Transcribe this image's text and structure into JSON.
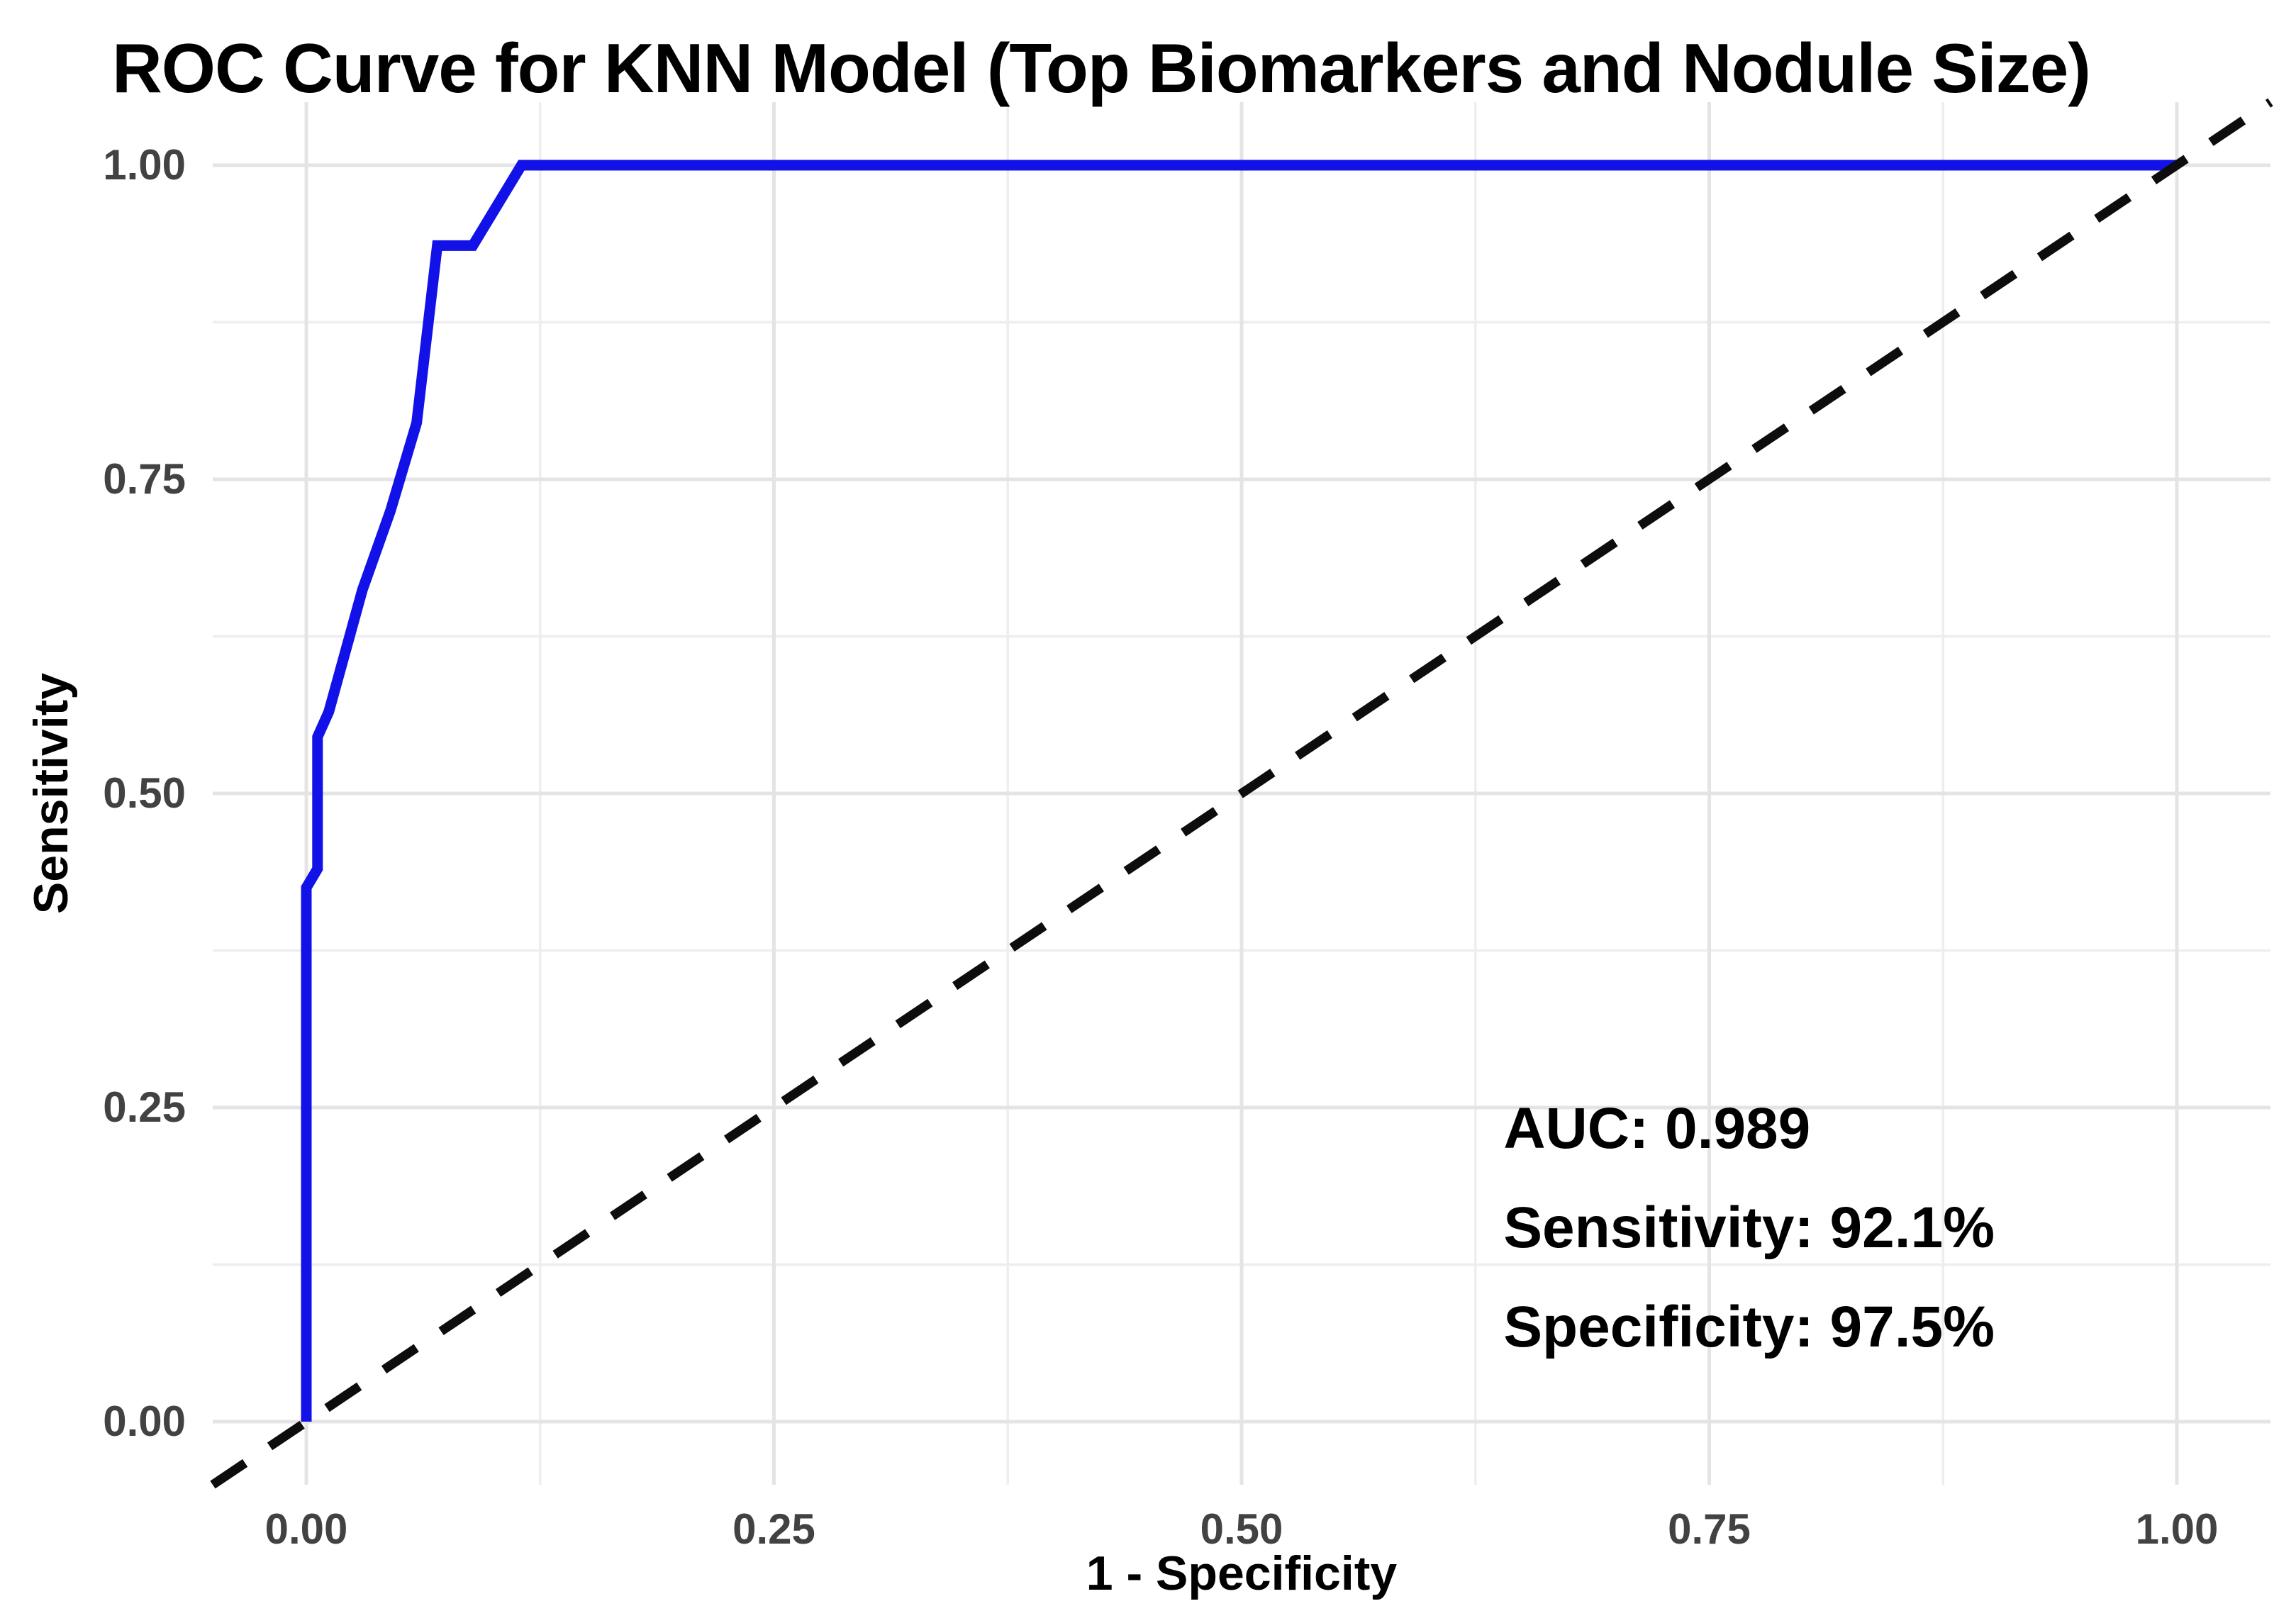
{
  "chart": {
    "title": "ROC Curve for KNN Model (Top Biomarkers and Nodule Size)",
    "x_axis_title": "1 - Specificity",
    "y_axis_title": "Sensitivity"
  },
  "chart_data": {
    "type": "line",
    "title": "ROC Curve for KNN Model (Top Biomarkers and Nodule Size)",
    "xlabel": "1 - Specificity",
    "ylabel": "Sensitivity",
    "xlim": [
      0,
      1
    ],
    "ylim": [
      0,
      1
    ],
    "x_ticks": {
      "values": [
        0,
        0.25,
        0.5,
        0.75,
        1
      ],
      "labels": [
        "0.00",
        "0.25",
        "0.50",
        "0.75",
        "1.00"
      ]
    },
    "y_ticks": {
      "values": [
        0,
        0.25,
        0.5,
        0.75,
        1
      ],
      "labels": [
        "0.00",
        "0.25",
        "0.50",
        "0.75",
        "1.00"
      ]
    },
    "minor_tick_values": [
      0.125,
      0.375,
      0.625,
      0.875
    ],
    "grid": {
      "major": true,
      "minor": true,
      "major_color": "#e4e4e4",
      "minor_color": "#eeeeee"
    },
    "legend": "none",
    "series": [
      {
        "name": "ROC curve (KNN model)",
        "color": "#1212e8",
        "width": 15,
        "dash": null,
        "points": [
          [
            0.0,
            0.0
          ],
          [
            0.0,
            0.425
          ],
          [
            0.006,
            0.44
          ],
          [
            0.006,
            0.545
          ],
          [
            0.012,
            0.565
          ],
          [
            0.03,
            0.662
          ],
          [
            0.045,
            0.725
          ],
          [
            0.059,
            0.795
          ],
          [
            0.07,
            0.936
          ],
          [
            0.089,
            0.936
          ],
          [
            0.115,
            1.0
          ],
          [
            1.0,
            1.0
          ]
        ]
      },
      {
        "name": "Chance reference diagonal",
        "color": "#0d0d0d",
        "width": 13,
        "dash": [
          55,
          42
        ],
        "span_panel": true,
        "points": [
          [
            0,
            0
          ],
          [
            1,
            1
          ]
        ]
      }
    ],
    "annotations": [
      {
        "text": "AUC: 0.989",
        "x": 0.64,
        "y": 0.233
      },
      {
        "text": "Sensitivity: 92.1%",
        "x": 0.64,
        "y": 0.154
      },
      {
        "text": "Specificity: 97.5%",
        "x": 0.64,
        "y": 0.075
      }
    ],
    "metrics": {
      "auc": 0.989,
      "sensitivity_pct": 92.1,
      "specificity_pct": 97.5
    }
  }
}
